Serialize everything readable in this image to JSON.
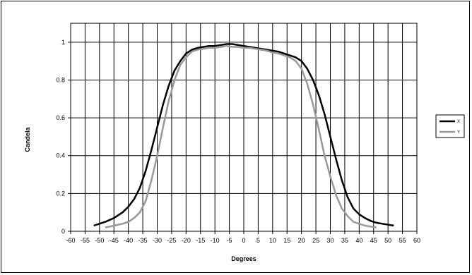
{
  "chart_data": {
    "type": "line",
    "title": "",
    "xlabel": "Degrees",
    "ylabel": "Candela",
    "xlim": [
      -60,
      60
    ],
    "ylim": [
      0,
      1.1
    ],
    "x_ticks": [
      -60,
      -55,
      -50,
      -45,
      -40,
      -35,
      -30,
      -25,
      -20,
      -15,
      -10,
      -5,
      0,
      5,
      10,
      15,
      20,
      25,
      30,
      35,
      40,
      45,
      50,
      55,
      60
    ],
    "y_ticks": [
      0,
      0.2,
      0.4,
      0.6,
      0.8,
      1
    ],
    "x_tick_labels": [
      "-60",
      "-55",
      "-50",
      "-45",
      "-40",
      "-35",
      "-30",
      "-25",
      "-20",
      "-15",
      "-10",
      "-5",
      "0",
      "5",
      "10",
      "15",
      "20",
      "25",
      "30",
      "35",
      "40",
      "45",
      "50",
      "55",
      "60"
    ],
    "y_tick_labels": [
      "0",
      "0.2",
      "0.4",
      "0.6",
      "0.8",
      "1"
    ],
    "grid": true,
    "legend_position": "right",
    "series": [
      {
        "name": "X",
        "color": "#000000",
        "x": [
          -52,
          -50,
          -48,
          -45,
          -42,
          -40,
          -38,
          -36,
          -34,
          -32,
          -30,
          -28,
          -26,
          -24,
          -22,
          -20,
          -18,
          -16,
          -14,
          -12,
          -10,
          -8,
          -6,
          -4,
          -2,
          0,
          2,
          4,
          6,
          8,
          10,
          12,
          14,
          16,
          18,
          20,
          22,
          24,
          26,
          28,
          30,
          32,
          34,
          36,
          38,
          40,
          42,
          44,
          46,
          48,
          50,
          52
        ],
        "y": [
          0.03,
          0.04,
          0.05,
          0.07,
          0.1,
          0.13,
          0.17,
          0.23,
          0.32,
          0.43,
          0.55,
          0.67,
          0.77,
          0.85,
          0.9,
          0.94,
          0.96,
          0.97,
          0.975,
          0.98,
          0.98,
          0.985,
          0.99,
          0.99,
          0.985,
          0.98,
          0.975,
          0.97,
          0.965,
          0.96,
          0.955,
          0.95,
          0.94,
          0.93,
          0.92,
          0.9,
          0.86,
          0.8,
          0.72,
          0.62,
          0.5,
          0.38,
          0.27,
          0.18,
          0.12,
          0.09,
          0.07,
          0.055,
          0.045,
          0.04,
          0.035,
          0.03
        ]
      },
      {
        "name": "Y",
        "color": "#999999",
        "x": [
          -48,
          -45,
          -42,
          -40,
          -38,
          -36,
          -34,
          -32,
          -30,
          -28,
          -26,
          -24,
          -22,
          -20,
          -18,
          -16,
          -14,
          -12,
          -10,
          -8,
          -6,
          -4,
          -2,
          0,
          2,
          4,
          6,
          8,
          10,
          12,
          14,
          16,
          18,
          20,
          22,
          24,
          26,
          28,
          30,
          32,
          34,
          36,
          38,
          40,
          42,
          44,
          46
        ],
        "y": [
          0.02,
          0.03,
          0.04,
          0.05,
          0.07,
          0.1,
          0.16,
          0.27,
          0.4,
          0.55,
          0.69,
          0.8,
          0.88,
          0.92,
          0.95,
          0.96,
          0.965,
          0.97,
          0.97,
          0.975,
          0.98,
          0.975,
          0.975,
          0.97,
          0.97,
          0.965,
          0.96,
          0.955,
          0.945,
          0.94,
          0.93,
          0.92,
          0.9,
          0.86,
          0.78,
          0.67,
          0.54,
          0.4,
          0.29,
          0.19,
          0.12,
          0.08,
          0.05,
          0.04,
          0.03,
          0.025,
          0.02
        ]
      }
    ]
  }
}
